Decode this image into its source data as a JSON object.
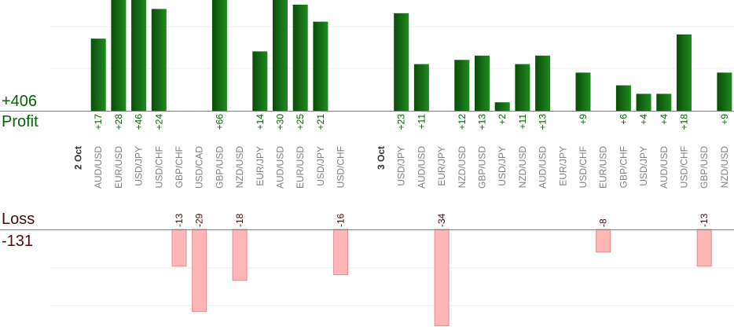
{
  "summary": {
    "profit_total": "+406",
    "profit_label": "Profit",
    "loss_label": "Loss",
    "loss_total": "-131"
  },
  "colors": {
    "profit_bar_dark": "#0a4d0a",
    "profit_bar_light": "#1f8a1f",
    "profit_text": "#006400",
    "loss_bar_fill": "#ffb6b6",
    "loss_bar_stroke": "#e58a8a",
    "loss_text": "#4a0a0a",
    "axis": "#808080",
    "grid": "#eeeeee",
    "category_text": "#808080"
  },
  "chart_data": {
    "type": "bar",
    "groups": [
      {
        "label": "2 Oct",
        "position_index": 0
      },
      {
        "label": "3 Oct",
        "position_index": 15
      }
    ],
    "categories": [
      "",
      "AUD/USD",
      "EUR/USD",
      "USD/JPY",
      "USD/CHF",
      "GBP/CHF",
      "USD/CAD",
      "GBP/USD",
      "NZD/USD",
      "EUR/JPY",
      "AUD/USD",
      "EUR/USD",
      "USD/JPY",
      "USD/CHF",
      "",
      "",
      "USD/JPY",
      "AUD/USD",
      "EUR/JPY",
      "NZD/USD",
      "GBP/USD",
      "USD/JPY",
      "NZD/USD",
      "AUD/USD",
      "EUR/JPY",
      "USD/CHF",
      "EUR/USD",
      "GBP/CHF",
      "USD/JPY",
      "AUD/USD",
      "USD/CHF",
      "GBP/USD",
      "NZD/USD"
    ],
    "series": [
      {
        "name": "Profit",
        "values": [
          null,
          17,
          28,
          46,
          24,
          null,
          null,
          66,
          null,
          14,
          30,
          25,
          21,
          null,
          null,
          null,
          23,
          11,
          null,
          12,
          13,
          2,
          11,
          13,
          null,
          9,
          null,
          6,
          4,
          4,
          18,
          null,
          9
        ]
      },
      {
        "name": "Loss",
        "values": [
          null,
          null,
          null,
          null,
          null,
          -13,
          -29,
          null,
          -18,
          null,
          null,
          null,
          null,
          -16,
          null,
          null,
          null,
          null,
          -34,
          null,
          null,
          null,
          null,
          null,
          null,
          null,
          -8,
          null,
          null,
          null,
          null,
          -13,
          null
        ]
      }
    ],
    "value_labels": {
      "profit": [
        "",
        "+17",
        "+28",
        "+46",
        "+24",
        "",
        "",
        "+66",
        "",
        "+14",
        "+30",
        "+25",
        "+21",
        "",
        "",
        "",
        "+23",
        "+11",
        "",
        "+12",
        "+13",
        "+2",
        "+11",
        "+13",
        "",
        "+9",
        "",
        "+6",
        "+4",
        "+4",
        "+18",
        "",
        "+9"
      ],
      "loss": [
        "",
        "",
        "",
        "",
        "",
        "-13",
        "-29",
        "",
        "-18",
        "",
        "",
        "",
        "",
        "-16",
        "",
        "",
        "",
        "",
        "-34",
        "",
        "",
        "",
        "",
        "",
        "",
        "",
        "-8",
        "",
        "",
        "",
        "",
        "-13",
        ""
      ]
    },
    "profit_ylim": [
      0,
      26
    ],
    "loss_ylim": [
      -24,
      0
    ],
    "grid": true,
    "legend": "none"
  }
}
